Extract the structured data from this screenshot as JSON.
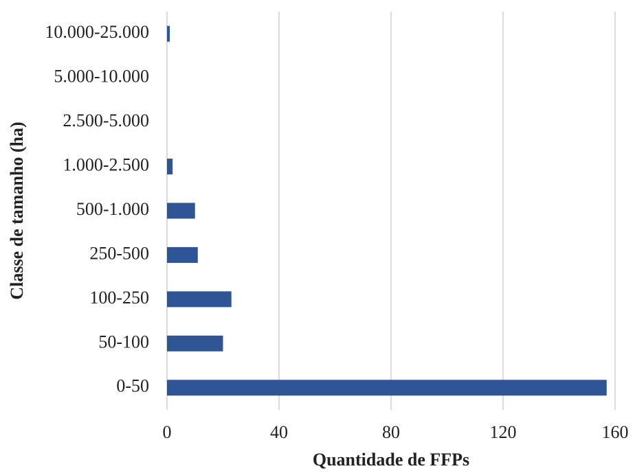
{
  "chart_data": {
    "type": "bar",
    "orientation": "horizontal",
    "xlabel": "Quantidade de FFPs",
    "ylabel": "Classe de tamanho (ha)",
    "categories": [
      "0-50",
      "50-100",
      "100-250",
      "250-500",
      "500-1.000",
      "1.000-2.500",
      "2.500-5.000",
      "5.000-10.000",
      "10.000-25.000"
    ],
    "values": [
      157,
      20,
      23,
      11,
      10,
      2,
      0,
      0,
      1
    ],
    "color": "#2f5597",
    "xlim": [
      0,
      160
    ],
    "xticks": [
      0,
      40,
      80,
      120,
      160
    ],
    "grid": true
  }
}
